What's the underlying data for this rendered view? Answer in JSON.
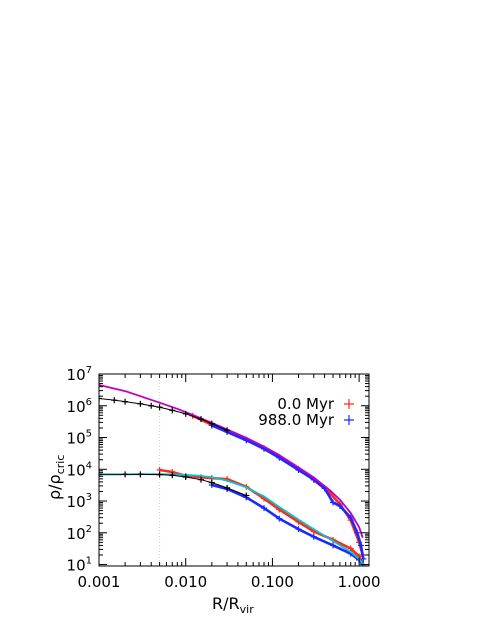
{
  "colors": {
    "initial_series": "#ff2a1a",
    "final_series": "#1a2aff",
    "nfw_fit": "#c000c0",
    "core_fit": "#00c8d0",
    "binned_profile": "#000000",
    "reference_line": "#c8d8c8"
  },
  "chart_data": {
    "type": "line",
    "x_scale": "log",
    "y_scale": "log",
    "xlim": [
      0.001,
      1.3
    ],
    "ylim": [
      9,
      10000000
    ],
    "xlabel": "R/R",
    "xlabel_sub": "vir",
    "ylabel": "ρ/ρ",
    "ylabel_sub": "cric",
    "x_ticks": [
      {
        "value": 0.001,
        "label": "0.001"
      },
      {
        "value": 0.01,
        "label": "0.010"
      },
      {
        "value": 0.1,
        "label": "0.100"
      },
      {
        "value": 1.0,
        "label": "1.000"
      }
    ],
    "y_ticks": [
      {
        "value": 10,
        "base": "10",
        "exp": "1"
      },
      {
        "value": 100,
        "base": "10",
        "exp": "2"
      },
      {
        "value": 1000,
        "base": "10",
        "exp": "3"
      },
      {
        "value": 10000,
        "base": "10",
        "exp": "4"
      },
      {
        "value": 100000,
        "base": "10",
        "exp": "5"
      },
      {
        "value": 1000000,
        "base": "10",
        "exp": "6"
      },
      {
        "value": 10000000,
        "base": "10",
        "exp": "7"
      }
    ],
    "legend": {
      "placement": "top-right",
      "entries": [
        {
          "label": "0.0 Myr",
          "color": "#ff2a1a",
          "marker": "plus"
        },
        {
          "label": "988.0 Myr",
          "color": "#1a2aff",
          "marker": "plus"
        }
      ]
    },
    "reference_line_x": 0.005,
    "series": [
      {
        "group": "upper-initial",
        "color": "#ff2a1a",
        "style": "markers",
        "x": [
          0.012,
          0.02,
          0.03,
          0.05,
          0.08,
          0.12,
          0.2,
          0.3,
          0.45,
          0.6,
          0.8,
          1.0,
          1.1
        ],
        "y": [
          480000,
          250000,
          155000,
          86000,
          46000,
          24000,
          10000,
          4600,
          1900,
          800,
          250,
          50,
          20
        ]
      },
      {
        "group": "upper-final",
        "color": "#1a2aff",
        "style": "markers",
        "x": [
          0.02,
          0.03,
          0.05,
          0.08,
          0.12,
          0.2,
          0.3,
          0.4,
          0.5,
          0.6,
          0.8,
          0.95,
          1.05,
          1.12
        ],
        "y": [
          240000,
          150000,
          82000,
          44000,
          23000,
          9500,
          4800,
          2500,
          900,
          700,
          300,
          100,
          40,
          15
        ]
      },
      {
        "group": "upper-nfw-fit",
        "color": "#c000c0",
        "style": "line",
        "x": [
          0.001,
          0.002,
          0.003,
          0.005,
          0.008,
          0.012,
          0.02,
          0.03,
          0.05,
          0.08,
          0.12,
          0.2,
          0.3,
          0.45,
          0.6,
          0.8,
          1.0,
          1.1
        ],
        "y": [
          4500000,
          2900000,
          2000000,
          1250000,
          800000,
          520000,
          290000,
          180000,
          98000,
          52000,
          28000,
          11500,
          5500,
          2300,
          1100,
          420,
          150,
          70
        ]
      },
      {
        "group": "upper-binned",
        "color": "#000000",
        "style": "line-markers",
        "x": [
          0.001,
          0.0015,
          0.002,
          0.003,
          0.004,
          0.005,
          0.007,
          0.01,
          0.015,
          0.02,
          0.03
        ],
        "y": [
          1700000,
          1500000,
          1350000,
          1150000,
          1000000,
          900000,
          720000,
          560000,
          380000,
          275000,
          170000
        ]
      },
      {
        "group": "lower-initial",
        "color": "#ff2a1a",
        "style": "markers",
        "x": [
          0.005,
          0.007,
          0.01,
          0.015,
          0.02,
          0.03,
          0.05,
          0.08,
          0.12,
          0.2,
          0.3,
          0.5,
          0.8,
          1.0,
          1.12
        ],
        "y": [
          9500,
          8200,
          6200,
          5600,
          5300,
          4900,
          2800,
          1200,
          540,
          220,
          110,
          60,
          32,
          18,
          10
        ]
      },
      {
        "group": "lower-final",
        "color": "#1a2aff",
        "style": "markers",
        "x": [
          0.02,
          0.03,
          0.05,
          0.08,
          0.12,
          0.2,
          0.3,
          0.5,
          0.8,
          1.0,
          1.1
        ],
        "y": [
          3200,
          2400,
          1300,
          600,
          280,
          130,
          75,
          40,
          22,
          14,
          10
        ]
      },
      {
        "group": "lower-fit",
        "color": "#00c8d0",
        "style": "line",
        "x": [
          0.001,
          0.002,
          0.003,
          0.005,
          0.007,
          0.01,
          0.015,
          0.02,
          0.03,
          0.05,
          0.08,
          0.12,
          0.2,
          0.3,
          0.5,
          0.8,
          1.0,
          1.15
        ],
        "y": [
          6800,
          6900,
          7000,
          7000,
          6900,
          6700,
          6200,
          5600,
          4400,
          2700,
          1400,
          650,
          260,
          130,
          55,
          25,
          15,
          9
        ]
      },
      {
        "group": "lower-binned",
        "color": "#000000",
        "style": "line-markers",
        "x": [
          0.001,
          0.002,
          0.003,
          0.005,
          0.007,
          0.01,
          0.015,
          0.02,
          0.03,
          0.05
        ],
        "y": [
          7000,
          6900,
          6900,
          6800,
          6500,
          5700,
          4700,
          3800,
          2600,
          1500
        ]
      }
    ]
  }
}
